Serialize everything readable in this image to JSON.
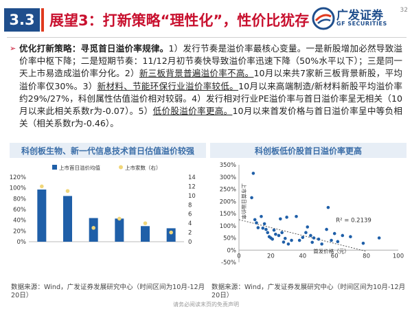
{
  "header": {
    "section": "3.3",
    "title": "展望3：打新策略“理性化”，性价比犹存",
    "logo_cn": "广发证券",
    "logo_en": "GF SECURITIES",
    "page_number": "32"
  },
  "body": {
    "bullet": "➢",
    "lead": "优化打新策略：寻觅首日溢价率规律。",
    "segments": [
      {
        "text": "1）发行节奏是溢价率最核心变量。一是新股增加必然导致溢价率中枢下降；二是短期节奏：11/12月初节奏快导致溢价率迅速下降（50%水平以下）；三是同一天上市易造成溢价率分化。2）",
        "u": false
      },
      {
        "text": "新三板背景普遍溢价率不高。",
        "u": true
      },
      {
        "text": "10月以来共7家新三板背景新股，平均溢价率仅30%。3）",
        "u": false
      },
      {
        "text": "新材料、节能环保行业溢价率较低。",
        "u": true
      },
      {
        "text": "10月以来高端制造/新材料新股平均溢价率约29%/27%，科创属性估值溢价相对较弱。4）发行相对行业PE溢价率与首日溢价率呈无相关（10月以来此相关系数r为-0.07）。5）",
        "u": false
      },
      {
        "text": "低价股溢价率更高。",
        "u": true
      },
      {
        "text": "10月以来首发价格与首日溢价率呈中等负相关（相关系数r为-0.46）。",
        "u": false
      }
    ]
  },
  "chart_left": {
    "title": "科创板生物、新一代信息技术首日估值溢价较强",
    "source": "数据来源：Wind，广发证券发展研究中心（时间区间为10月-12月20日）"
  },
  "chart_right": {
    "title": "科创板低价股首日溢价率更高",
    "source": "数据来源：Wind，广发证券发展研究中心（时间区间为10月-12月20日）"
  },
  "footer": "请务必阅读末页的免责声明",
  "colors": {
    "blue": "#1f5fa8",
    "yellow": "#f0d67a",
    "red": "#c8102e",
    "navy": "#1f4e8c"
  },
  "chart_data": [
    {
      "type": "bar",
      "title": "",
      "series": [
        {
          "name": "上市首日溢价均值",
          "type": "bar",
          "axis": "left",
          "values": [
            0.97,
            0.85,
            0.44,
            0.43,
            0.29,
            0.25
          ]
        },
        {
          "name": "上市家数（右）",
          "type": "scatter",
          "axis": "right",
          "values": [
            12,
            11,
            3,
            5,
            4,
            2
          ]
        }
      ],
      "categories": [
        "",
        "",
        "",
        "",
        "",
        ""
      ],
      "ylim": [
        0,
        1.2
      ],
      "y_ticks": [
        "0%",
        "20%",
        "40%",
        "60%",
        "80%",
        "100%",
        "120%"
      ],
      "y2lim": [
        0,
        14
      ],
      "y2_ticks": [
        "0",
        "2",
        "4",
        "6",
        "8",
        "10",
        "12",
        "14"
      ],
      "legend": "top"
    },
    {
      "type": "scatter",
      "xlabel": "首发价格（元）",
      "ylabel": "上市首日溢价率",
      "xlim": [
        0,
        100
      ],
      "ylim": [
        -0.5,
        3.5
      ],
      "x_ticks": [
        "0",
        "20",
        "40",
        "60",
        "80",
        "100"
      ],
      "y_ticks": [
        "-50%",
        "0%",
        "50%",
        "100%",
        "150%",
        "200%",
        "250%",
        "300%",
        "350%"
      ],
      "annotation": "R² = 0.2139",
      "trendline": [
        [
          0,
          1.25
        ],
        [
          80,
          -0.05
        ]
      ],
      "points": [
        [
          9,
          3.15
        ],
        [
          8,
          2.15
        ],
        [
          10,
          1.25
        ],
        [
          11,
          1.12
        ],
        [
          14,
          1.38
        ],
        [
          15,
          0.9
        ],
        [
          16,
          1.08
        ],
        [
          17,
          0.85
        ],
        [
          18,
          0.72
        ],
        [
          19,
          0.55
        ],
        [
          20,
          0.5
        ],
        [
          21,
          0.45
        ],
        [
          22,
          0.82
        ],
        [
          23,
          0.65
        ],
        [
          25,
          0.6
        ],
        [
          26,
          1.28
        ],
        [
          27,
          0.72
        ],
        [
          28,
          0.33
        ],
        [
          29,
          0.48
        ],
        [
          30,
          1.35
        ],
        [
          31,
          0.25
        ],
        [
          33,
          0.4
        ],
        [
          36,
          1.38
        ],
        [
          40,
          0.52
        ],
        [
          42,
          0.72
        ],
        [
          43,
          0.95
        ],
        [
          45,
          0.6
        ],
        [
          46,
          0.32
        ],
        [
          47,
          0.5
        ],
        [
          50,
          0.45
        ],
        [
          52,
          0.25
        ],
        [
          55,
          0.85
        ],
        [
          56,
          1.75
        ],
        [
          58,
          0.4
        ],
        [
          60,
          0.68
        ],
        [
          62,
          0.35
        ],
        [
          65,
          0.6
        ],
        [
          70,
          0.55
        ],
        [
          78,
          0.28
        ],
        [
          88,
          0.5
        ],
        [
          38,
          0.4
        ],
        [
          12,
          0.92
        ]
      ]
    }
  ]
}
